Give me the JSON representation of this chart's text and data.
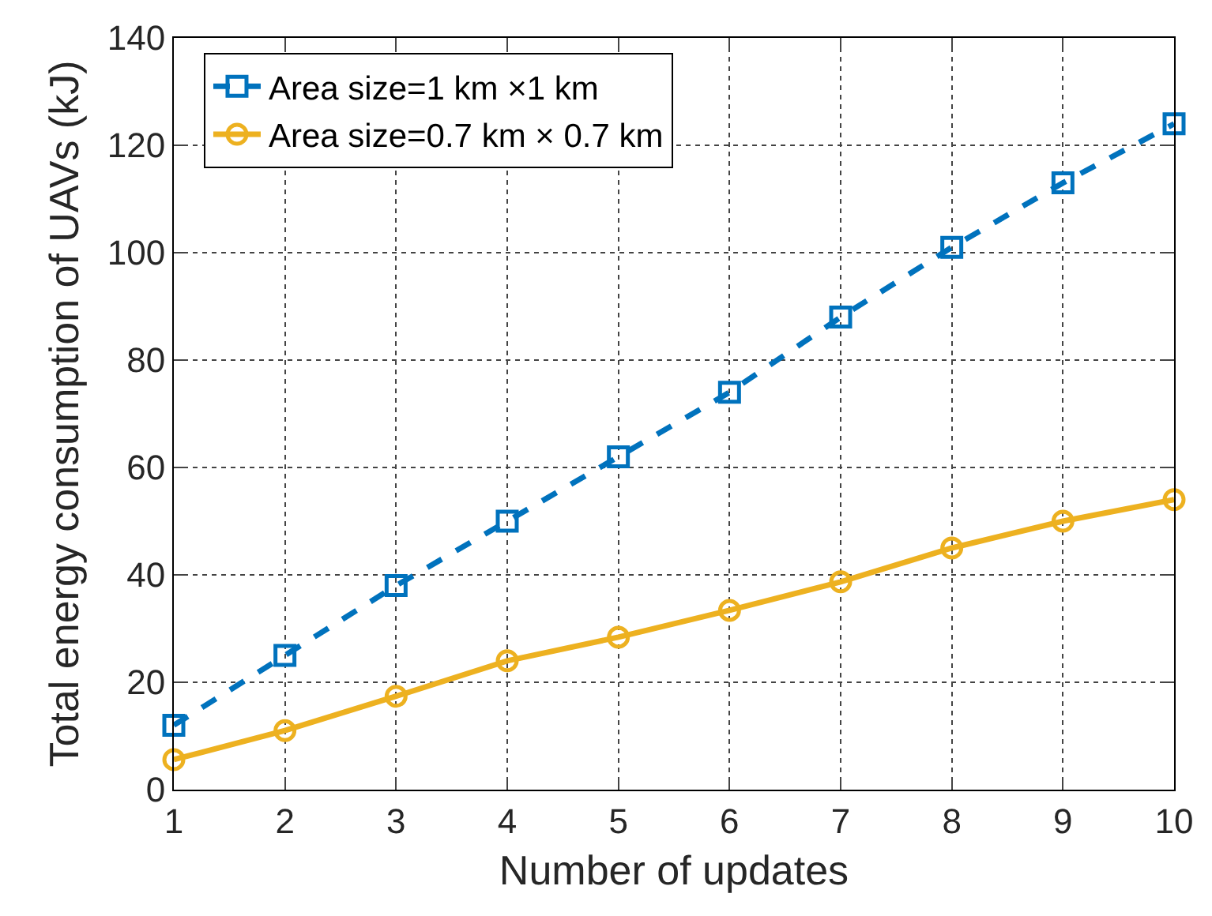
{
  "chart_data": {
    "type": "line",
    "xlabel": "Number of updates",
    "ylabel": "Total energy consumption of UAVs (kJ)",
    "x": [
      1,
      2,
      3,
      4,
      5,
      6,
      7,
      8,
      9,
      10
    ],
    "series": [
      {
        "name": "Area size=1 km ×1 km",
        "color": "#0072bd",
        "marker": "square",
        "line_style": "dashed",
        "values": [
          12,
          25,
          38,
          50,
          62,
          74,
          88,
          101,
          113,
          124
        ]
      },
      {
        "name": "Area size=0.7 km × 0.7 km",
        "color": "#edb120",
        "marker": "circle",
        "line_style": "solid",
        "values": [
          5.6,
          11,
          17.4,
          24,
          28.4,
          33.4,
          38.7,
          45,
          50,
          54
        ]
      }
    ],
    "xlim": [
      1,
      10
    ],
    "xticks": [
      1,
      2,
      3,
      4,
      5,
      6,
      7,
      8,
      9,
      10
    ],
    "ylim": [
      0,
      140
    ],
    "yticks": [
      0,
      20,
      40,
      60,
      80,
      100,
      120,
      140
    ],
    "grid": true,
    "legend": "top left"
  }
}
